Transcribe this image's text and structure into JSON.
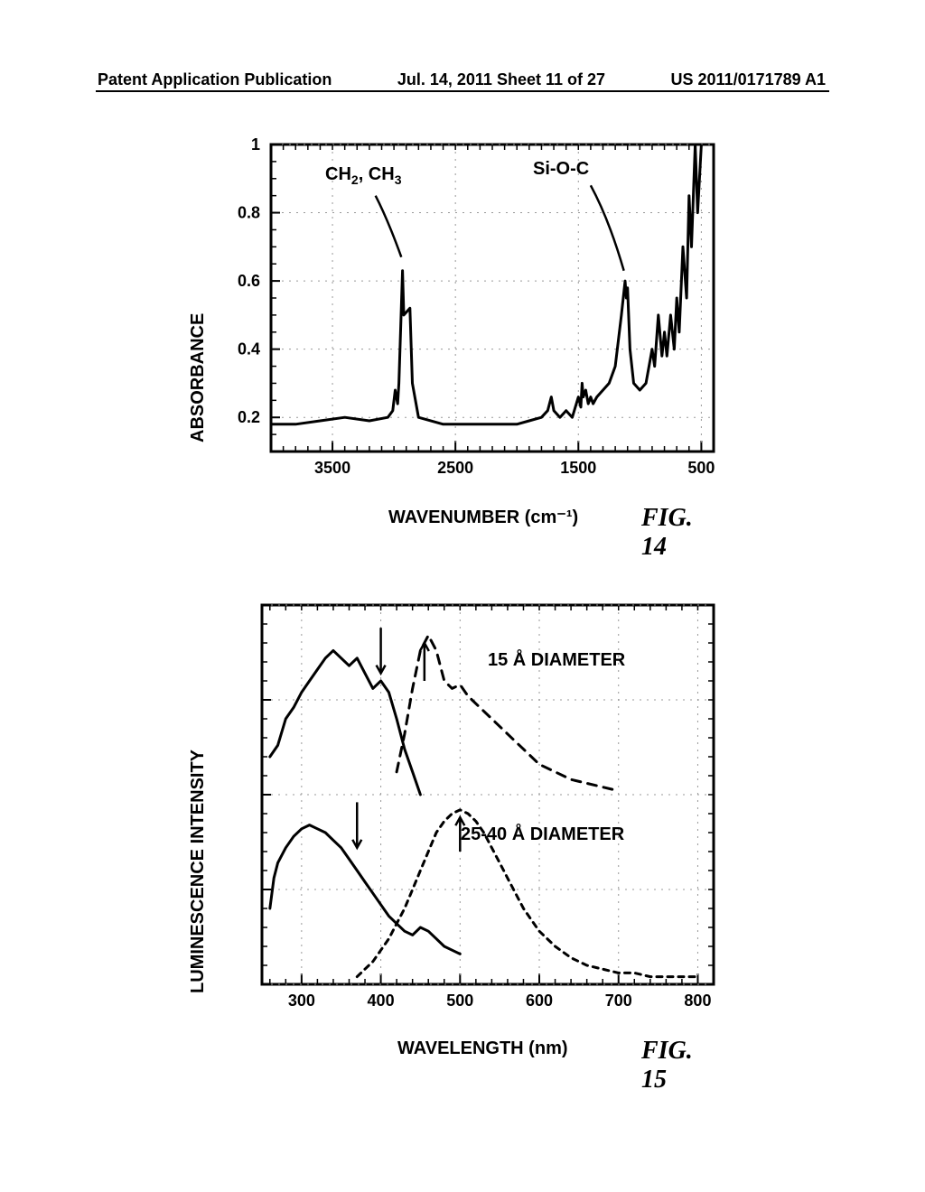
{
  "header": {
    "left": "Patent Application Publication",
    "center": "Jul. 14, 2011  Sheet 11 of 27",
    "right": "US 2011/0171789 A1"
  },
  "fig14": {
    "type": "line",
    "ylabel": "ABSORBANCE",
    "xlabel": "WAVENUMBER (cm⁻¹)",
    "figlabel": "FIG. 14",
    "xlim": [
      4000,
      400
    ],
    "ylim": [
      0.1,
      1.0
    ],
    "yticks": [
      0.2,
      0.4,
      0.6,
      0.8,
      1
    ],
    "xticks": [
      3500,
      2500,
      1500,
      500
    ],
    "annotations": {
      "ch": "CH₂, CH₃",
      "sioc": "Si-O-C"
    },
    "colors": {
      "line": "#000000",
      "axis": "#000000",
      "grid": "#999999"
    },
    "line_width": 3,
    "points": [
      [
        4000,
        0.18
      ],
      [
        3800,
        0.18
      ],
      [
        3600,
        0.19
      ],
      [
        3400,
        0.2
      ],
      [
        3200,
        0.19
      ],
      [
        3050,
        0.2
      ],
      [
        3010,
        0.22
      ],
      [
        2990,
        0.28
      ],
      [
        2970,
        0.24
      ],
      [
        2960,
        0.3
      ],
      [
        2930,
        0.63
      ],
      [
        2920,
        0.5
      ],
      [
        2870,
        0.52
      ],
      [
        2850,
        0.3
      ],
      [
        2800,
        0.2
      ],
      [
        2600,
        0.18
      ],
      [
        2400,
        0.18
      ],
      [
        2200,
        0.18
      ],
      [
        2000,
        0.18
      ],
      [
        1900,
        0.19
      ],
      [
        1800,
        0.2
      ],
      [
        1750,
        0.22
      ],
      [
        1720,
        0.26
      ],
      [
        1700,
        0.22
      ],
      [
        1650,
        0.2
      ],
      [
        1600,
        0.22
      ],
      [
        1550,
        0.2
      ],
      [
        1500,
        0.26
      ],
      [
        1480,
        0.23
      ],
      [
        1470,
        0.3
      ],
      [
        1460,
        0.26
      ],
      [
        1440,
        0.28
      ],
      [
        1420,
        0.24
      ],
      [
        1400,
        0.26
      ],
      [
        1380,
        0.24
      ],
      [
        1350,
        0.26
      ],
      [
        1300,
        0.28
      ],
      [
        1250,
        0.3
      ],
      [
        1200,
        0.35
      ],
      [
        1150,
        0.5
      ],
      [
        1120,
        0.6
      ],
      [
        1110,
        0.55
      ],
      [
        1100,
        0.58
      ],
      [
        1080,
        0.4
      ],
      [
        1050,
        0.3
      ],
      [
        1000,
        0.28
      ],
      [
        950,
        0.3
      ],
      [
        900,
        0.4
      ],
      [
        880,
        0.35
      ],
      [
        850,
        0.5
      ],
      [
        820,
        0.38
      ],
      [
        800,
        0.45
      ],
      [
        780,
        0.38
      ],
      [
        750,
        0.5
      ],
      [
        720,
        0.4
      ],
      [
        700,
        0.55
      ],
      [
        680,
        0.45
      ],
      [
        650,
        0.7
      ],
      [
        620,
        0.55
      ],
      [
        600,
        0.85
      ],
      [
        580,
        0.7
      ],
      [
        550,
        1.0
      ],
      [
        530,
        0.8
      ],
      [
        500,
        1.0
      ]
    ]
  },
  "fig15": {
    "type": "line",
    "ylabel": "LUMINESCENCE INTENSITY",
    "xlabel": "WAVELENGTH (nm)",
    "figlabel": "FIG. 15",
    "xlim": [
      250,
      820
    ],
    "ylim": [
      0,
      100
    ],
    "xticks": [
      300,
      400,
      500,
      600,
      700,
      800
    ],
    "annotations": {
      "top": "15 Å DIAMETER",
      "bottom": "25-40 Å DIAMETER"
    },
    "colors": {
      "line": "#000000",
      "axis": "#000000"
    },
    "line_width": 3,
    "series": {
      "top_solid": [
        [
          260,
          60
        ],
        [
          270,
          63
        ],
        [
          280,
          70
        ],
        [
          290,
          73
        ],
        [
          300,
          77
        ],
        [
          310,
          80
        ],
        [
          320,
          83
        ],
        [
          330,
          86
        ],
        [
          340,
          88
        ],
        [
          350,
          86
        ],
        [
          360,
          84
        ],
        [
          370,
          86
        ],
        [
          380,
          82
        ],
        [
          390,
          78
        ],
        [
          400,
          80
        ],
        [
          410,
          77
        ],
        [
          420,
          70
        ],
        [
          430,
          62
        ],
        [
          440,
          56
        ],
        [
          450,
          50
        ]
      ],
      "top_dash": [
        [
          420,
          56
        ],
        [
          430,
          66
        ],
        [
          440,
          78
        ],
        [
          450,
          88
        ],
        [
          460,
          92
        ],
        [
          470,
          88
        ],
        [
          480,
          80
        ],
        [
          490,
          78
        ],
        [
          500,
          79
        ],
        [
          510,
          76
        ],
        [
          520,
          74
        ],
        [
          540,
          70
        ],
        [
          560,
          66
        ],
        [
          580,
          62
        ],
        [
          600,
          58
        ],
        [
          620,
          56
        ],
        [
          640,
          54
        ],
        [
          660,
          53
        ],
        [
          680,
          52
        ],
        [
          700,
          51
        ]
      ],
      "bot_solid": [
        [
          260,
          20
        ],
        [
          265,
          28
        ],
        [
          270,
          32
        ],
        [
          280,
          36
        ],
        [
          290,
          39
        ],
        [
          300,
          41
        ],
        [
          310,
          42
        ],
        [
          320,
          41
        ],
        [
          330,
          40
        ],
        [
          340,
          38
        ],
        [
          350,
          36
        ],
        [
          360,
          33
        ],
        [
          370,
          30
        ],
        [
          380,
          27
        ],
        [
          390,
          24
        ],
        [
          400,
          21
        ],
        [
          410,
          18
        ],
        [
          420,
          16
        ],
        [
          430,
          14
        ],
        [
          440,
          13
        ],
        [
          450,
          15
        ],
        [
          460,
          14
        ],
        [
          470,
          12
        ],
        [
          480,
          10
        ],
        [
          490,
          9
        ],
        [
          500,
          8
        ]
      ],
      "bot_dash": [
        [
          370,
          2
        ],
        [
          380,
          4
        ],
        [
          390,
          6
        ],
        [
          400,
          9
        ],
        [
          410,
          12
        ],
        [
          420,
          16
        ],
        [
          430,
          20
        ],
        [
          440,
          25
        ],
        [
          450,
          30
        ],
        [
          460,
          35
        ],
        [
          470,
          40
        ],
        [
          480,
          43
        ],
        [
          490,
          45
        ],
        [
          500,
          46
        ],
        [
          510,
          45
        ],
        [
          520,
          43
        ],
        [
          530,
          40
        ],
        [
          540,
          36
        ],
        [
          550,
          32
        ],
        [
          560,
          28
        ],
        [
          570,
          24
        ],
        [
          580,
          20
        ],
        [
          590,
          17
        ],
        [
          600,
          14
        ],
        [
          620,
          10
        ],
        [
          640,
          7
        ],
        [
          660,
          5
        ],
        [
          680,
          4
        ],
        [
          700,
          3
        ],
        [
          720,
          3
        ],
        [
          740,
          2
        ],
        [
          760,
          2
        ],
        [
          780,
          2
        ],
        [
          800,
          2
        ]
      ]
    }
  }
}
